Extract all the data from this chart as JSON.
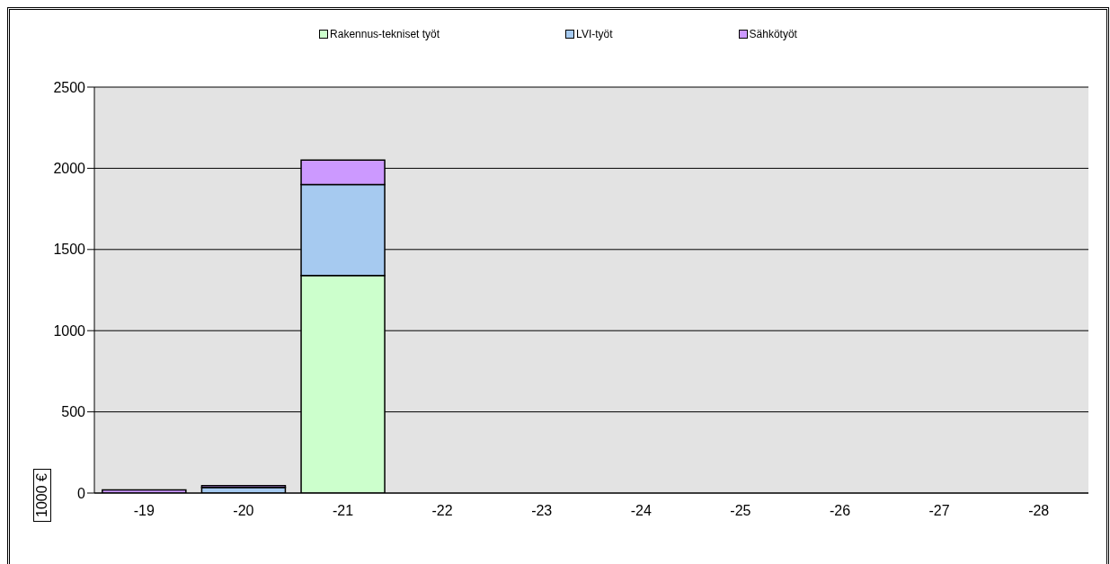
{
  "chart_data": {
    "type": "bar",
    "stacked": true,
    "ylabel": "1000 €",
    "categories": [
      "-19",
      "-20",
      "-21",
      "-22",
      "-23",
      "-24",
      "-25",
      "-26",
      "-27",
      "-28"
    ],
    "series": [
      {
        "name": "Rakennus-tekniset työt",
        "color": "#ccffcc",
        "values": [
          0,
          0,
          1340,
          0,
          0,
          0,
          0,
          0,
          0,
          0
        ]
      },
      {
        "name": "LVI-työt",
        "color": "#a6caf0",
        "values": [
          0,
          35,
          560,
          0,
          0,
          0,
          0,
          0,
          0,
          0
        ]
      },
      {
        "name": "Sähkötyöt",
        "color": "#cc99ff",
        "values": [
          20,
          10,
          150,
          0,
          0,
          0,
          0,
          0,
          0,
          0
        ]
      }
    ],
    "ylim": [
      0,
      2500
    ],
    "yticks": [
      0,
      500,
      1000,
      1500,
      2000,
      2500
    ],
    "grid": "y",
    "legend": "top"
  }
}
